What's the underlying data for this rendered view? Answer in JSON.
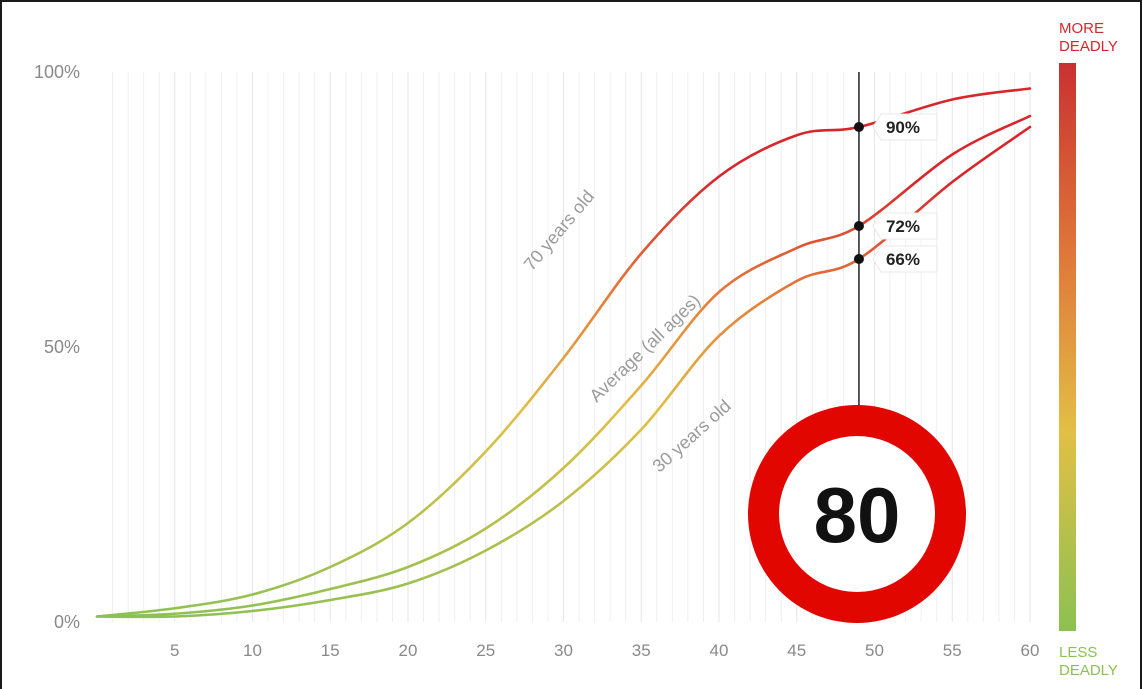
{
  "chart_data": {
    "type": "line",
    "x": [
      0,
      5,
      10,
      15,
      20,
      25,
      30,
      35,
      40,
      45,
      49,
      55,
      60
    ],
    "xticks": [
      "5",
      "10",
      "15",
      "20",
      "25",
      "30",
      "35",
      "40",
      "45",
      "50",
      "55",
      "60"
    ],
    "yticks": [
      "0%",
      "50%",
      "100%"
    ],
    "ylim": [
      0,
      100
    ],
    "xlim": [
      0,
      60
    ],
    "series": [
      {
        "name": "70 years old",
        "values": [
          1,
          2.5,
          5,
          10,
          18,
          31,
          48,
          67,
          81,
          88.5,
          90,
          95,
          97
        ]
      },
      {
        "name": "Average (all ages)",
        "values": [
          1,
          1.5,
          3,
          6,
          10,
          17,
          28,
          43,
          60,
          68,
          72,
          85,
          92
        ]
      },
      {
        "name": "30 years old",
        "values": [
          1,
          1,
          2,
          4,
          7,
          13,
          22,
          35,
          52,
          62,
          66,
          80,
          90
        ]
      }
    ],
    "marker_x": 49,
    "callouts": [
      {
        "value": 90,
        "label": "90%"
      },
      {
        "value": 72,
        "label": "72%"
      },
      {
        "value": 66,
        "label": "66%"
      }
    ],
    "legend": {
      "top": "MORE\nDEADLY",
      "bottom": "LESS\nDEADLY"
    },
    "sign": "80",
    "grid": "vertical",
    "colors": {
      "low": "#8cc152",
      "mid": "#e2bf45",
      "high": "#d8262b",
      "sign_ring": "#e10600"
    }
  }
}
